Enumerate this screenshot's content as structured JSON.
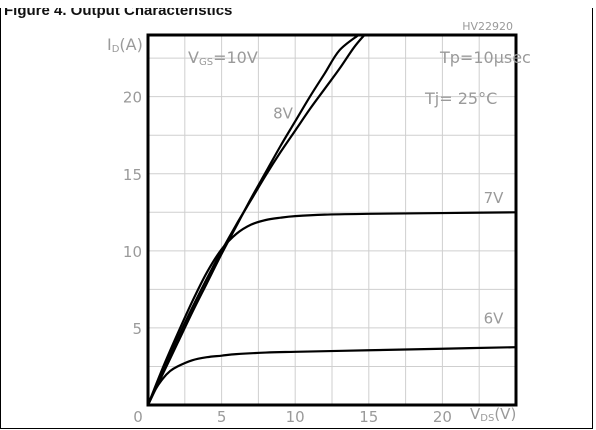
{
  "figure": {
    "caption": "Figure 4. Output Characteristics",
    "drawing_code": "HV22920"
  },
  "chart_data": {
    "type": "line",
    "xlabel_main": "V",
    "xlabel_sub": "DS",
    "xlabel_unit": "(V)",
    "ylabel_main": "I",
    "ylabel_sub": "D",
    "ylabel_unit": "(A)",
    "xlim": [
      0,
      25
    ],
    "ylim": [
      0,
      24
    ],
    "x_ticks": [
      0,
      5,
      10,
      15,
      20
    ],
    "y_ticks": [
      5,
      10,
      15,
      20
    ],
    "grid": true,
    "annotations": {
      "vgs": {
        "main": "V",
        "sub": "GS",
        "rest": "=10V"
      },
      "tp": "Tp=10µsec",
      "tj": "Tj= 25°C"
    },
    "series": [
      {
        "name": "10V",
        "x": [
          0,
          1,
          2,
          3,
          4,
          5,
          6,
          7,
          8,
          9,
          10,
          11,
          12,
          13,
          14.3
        ],
        "y": [
          0,
          2.0,
          4.0,
          6.0,
          7.9,
          9.8,
          11.6,
          13.4,
          15.1,
          16.8,
          18.4,
          20.0,
          21.5,
          23.0,
          24.0
        ]
      },
      {
        "name": "8V",
        "x": [
          0,
          1,
          2,
          3,
          4,
          5,
          6,
          7,
          8,
          9,
          10,
          11,
          12,
          13,
          14,
          14.7
        ],
        "y": [
          0,
          2.2,
          4.3,
          6.3,
          8.2,
          10.0,
          11.7,
          13.3,
          14.9,
          16.4,
          17.8,
          19.2,
          20.5,
          21.8,
          23.2,
          24.0
        ]
      },
      {
        "name": "7V",
        "x": [
          0,
          1,
          2,
          3,
          4,
          5,
          6,
          7,
          8,
          9,
          10,
          12,
          15,
          20,
          25
        ],
        "y": [
          0,
          2.4,
          4.6,
          6.7,
          8.6,
          10.1,
          11.1,
          11.7,
          12.0,
          12.15,
          12.25,
          12.35,
          12.4,
          12.45,
          12.5
        ]
      },
      {
        "name": "6V",
        "x": [
          0,
          0.5,
          1,
          1.5,
          2,
          3,
          4,
          5,
          6,
          8,
          10,
          15,
          20,
          25
        ],
        "y": [
          0,
          1.0,
          1.7,
          2.2,
          2.5,
          2.9,
          3.1,
          3.2,
          3.3,
          3.4,
          3.45,
          3.55,
          3.65,
          3.75
        ]
      }
    ],
    "series_labels": [
      "8V",
      "7V",
      "6V"
    ]
  }
}
